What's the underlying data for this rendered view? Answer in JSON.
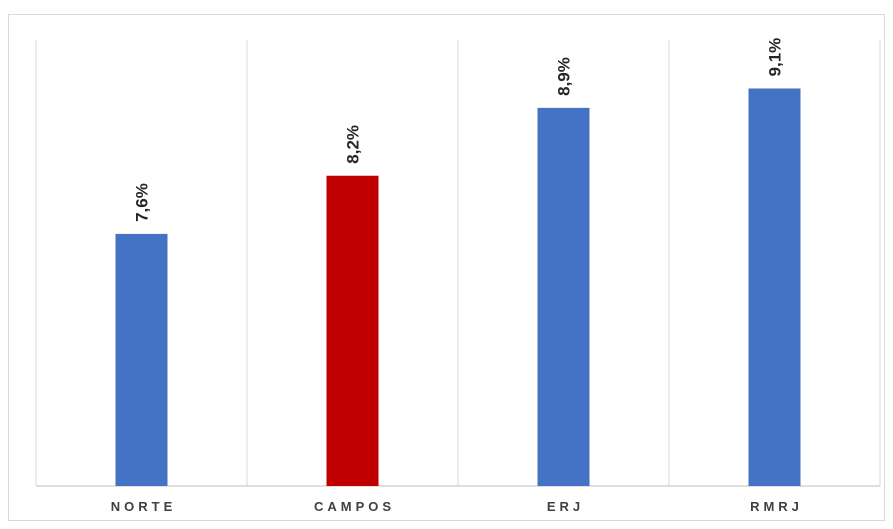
{
  "chart_data": {
    "type": "bar",
    "categories": [
      "NORTE",
      "CAMPOS",
      "ERJ",
      "RMRJ"
    ],
    "values": [
      7.6,
      8.2,
      8.9,
      9.1
    ],
    "value_labels": [
      "7,6%",
      "8,2%",
      "8,9%",
      "9,1%"
    ],
    "bar_colors": [
      "#4472c4",
      "#c00000",
      "#4472c4",
      "#4472c4"
    ],
    "title": "",
    "xlabel": "",
    "ylabel": "",
    "ylim": [
      5.0,
      9.6
    ],
    "grid": "vertical separators between categories",
    "legend": "none"
  }
}
